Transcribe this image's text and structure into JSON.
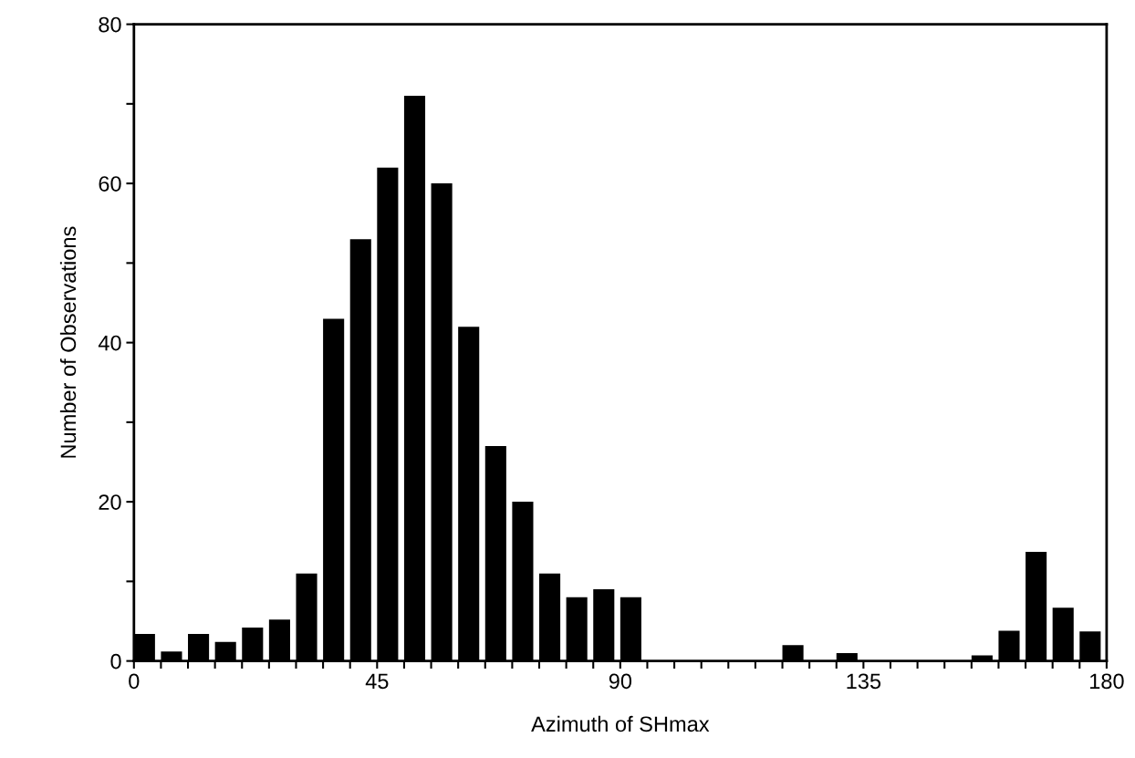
{
  "chart_data": {
    "type": "histogram",
    "xlabel": "Azimuth of SHmax",
    "ylabel": "Number of Observations",
    "bins": [
      0,
      5,
      10,
      15,
      20,
      25,
      30,
      35,
      40,
      45,
      50,
      55,
      60,
      65,
      70,
      75,
      80,
      85,
      90,
      95,
      100,
      105,
      110,
      115,
      120,
      125,
      130,
      135,
      140,
      145,
      150,
      155,
      160,
      165,
      170,
      175,
      180
    ],
    "values": [
      3.4,
      1.2,
      3.4,
      2.4,
      4.2,
      5.2,
      11,
      43,
      53,
      62,
      71,
      60,
      42,
      27,
      20,
      11,
      8,
      9,
      8,
      0,
      0,
      0,
      0,
      0,
      2,
      0,
      1,
      0,
      0,
      0,
      0,
      0.7,
      3.8,
      13.7,
      6.7,
      3.7
    ],
    "color": "#000000",
    "xlim": [
      0,
      180
    ],
    "ylim": [
      0,
      80
    ],
    "xticks": [
      0,
      {
        "value": 5,
        "label": null
      },
      {
        "value": 10,
        "label": null
      },
      {
        "value": 15,
        "label": null
      },
      {
        "value": 20,
        "label": null
      },
      {
        "value": 25,
        "label": null
      },
      {
        "value": 30,
        "label": null
      },
      {
        "value": 35,
        "label": null
      },
      {
        "value": 40,
        "label": null
      },
      45,
      {
        "value": 50,
        "label": null
      },
      {
        "value": 55,
        "label": null
      },
      {
        "value": 60,
        "label": null
      },
      {
        "value": 65,
        "label": null
      },
      {
        "value": 70,
        "label": null
      },
      {
        "value": 75,
        "label": null
      },
      {
        "value": 80,
        "label": null
      },
      {
        "value": 85,
        "label": null
      },
      90,
      {
        "value": 95,
        "label": null
      },
      {
        "value": 100,
        "label": null
      },
      {
        "value": 105,
        "label": null
      },
      {
        "value": 110,
        "label": null
      },
      {
        "value": 115,
        "label": null
      },
      {
        "value": 120,
        "label": null
      },
      {
        "value": 125,
        "label": null
      },
      {
        "value": 130,
        "label": null
      },
      135,
      {
        "value": 140,
        "label": null
      },
      {
        "value": 145,
        "label": null
      },
      {
        "value": 150,
        "label": null
      },
      {
        "value": 155,
        "label": null
      },
      {
        "value": 160,
        "label": null
      },
      {
        "value": 165,
        "label": null
      },
      {
        "value": 170,
        "label": null
      },
      {
        "value": 175,
        "label": null
      },
      180
    ],
    "yticks": [
      0,
      {
        "value": 10,
        "label": null
      },
      20,
      {
        "value": 30,
        "label": null
      },
      40,
      {
        "value": 50,
        "label": null
      },
      60,
      {
        "value": 70,
        "label": null
      },
      80
    ],
    "grid": false,
    "legend": false
  }
}
